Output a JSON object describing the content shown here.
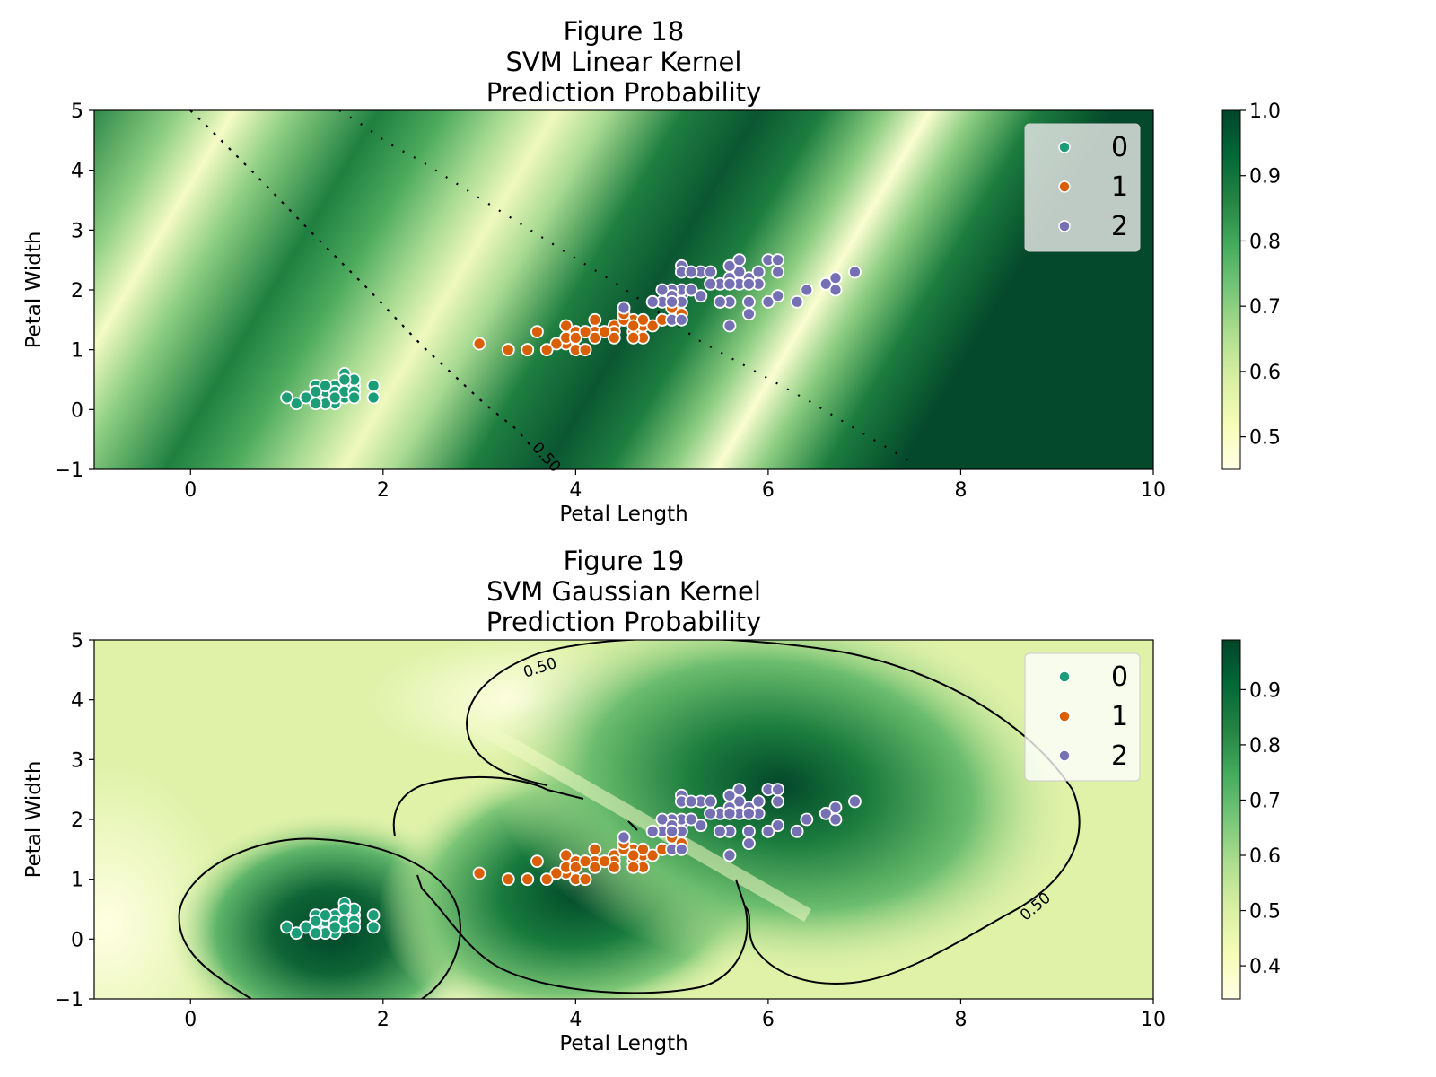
{
  "chart_data": [
    {
      "type": "scatter",
      "title": [
        "Figure 18",
        "SVM Linear Kernel",
        "Prediction Probability"
      ],
      "xlabel": "Petal Length",
      "ylabel": "Petal Width",
      "xlim": [
        -1,
        10
      ],
      "ylim": [
        -1,
        5
      ],
      "xticks": [
        "0",
        "2",
        "4",
        "6",
        "8",
        "10"
      ],
      "yticks": [
        "−1",
        "0",
        "1",
        "2",
        "3",
        "4",
        "5"
      ],
      "background": "heatmap",
      "colormap": "YlGn",
      "colorbar": {
        "range": [
          0.45,
          1.0
        ],
        "ticks": [
          "0.5",
          "0.6",
          "0.7",
          "0.8",
          "0.9",
          "1.0"
        ]
      },
      "contour_level_label": "0.50",
      "grid": false,
      "legend_position": "top-right",
      "legend_labels": [
        "0",
        "1",
        "2"
      ]
    },
    {
      "type": "scatter",
      "title": [
        "Figure 19",
        "SVM Gaussian Kernel",
        "Prediction Probability"
      ],
      "xlabel": "Petal Length",
      "ylabel": "Petal Width",
      "xlim": [
        -1,
        10
      ],
      "ylim": [
        -1,
        5
      ],
      "xticks": [
        "0",
        "2",
        "4",
        "6",
        "8",
        "10"
      ],
      "yticks": [
        "−1",
        "0",
        "1",
        "2",
        "3",
        "4",
        "5"
      ],
      "background": "heatmap",
      "colormap": "YlGn",
      "colorbar": {
        "range": [
          0.34,
          0.99
        ],
        "ticks": [
          "0.4",
          "0.5",
          "0.6",
          "0.7",
          "0.8",
          "0.9"
        ]
      },
      "contour_level_label": "0.50",
      "grid": false,
      "legend_position": "top-right",
      "legend_labels": [
        "0",
        "1",
        "2"
      ]
    }
  ],
  "series": [
    {
      "name": "0",
      "color": "#1b9e77",
      "points": [
        [
          1.4,
          0.2
        ],
        [
          1.3,
          0.2
        ],
        [
          1.5,
          0.2
        ],
        [
          1.7,
          0.4
        ],
        [
          1.4,
          0.3
        ],
        [
          1.5,
          0.1
        ],
        [
          1.6,
          0.2
        ],
        [
          1.1,
          0.1
        ],
        [
          1.2,
          0.2
        ],
        [
          1.3,
          0.4
        ],
        [
          1.0,
          0.2
        ],
        [
          1.7,
          0.5
        ],
        [
          1.9,
          0.2
        ],
        [
          1.6,
          0.4
        ],
        [
          1.5,
          0.4
        ],
        [
          1.4,
          0.1
        ],
        [
          1.6,
          0.6
        ],
        [
          1.9,
          0.4
        ],
        [
          1.3,
          0.3
        ],
        [
          1.5,
          0.3
        ],
        [
          1.6,
          0.3
        ],
        [
          1.7,
          0.3
        ],
        [
          1.4,
          0.4
        ],
        [
          1.2,
          0.2
        ],
        [
          1.5,
          0.2
        ],
        [
          1.6,
          0.5
        ],
        [
          1.7,
          0.2
        ],
        [
          1.3,
          0.1
        ]
      ]
    },
    {
      "name": "1",
      "color": "#d95f02",
      "points": [
        [
          4.7,
          1.4
        ],
        [
          4.5,
          1.5
        ],
        [
          4.9,
          1.5
        ],
        [
          4.0,
          1.3
        ],
        [
          4.6,
          1.5
        ],
        [
          3.3,
          1.0
        ],
        [
          4.6,
          1.3
        ],
        [
          3.9,
          1.4
        ],
        [
          3.5,
          1.0
        ],
        [
          4.2,
          1.5
        ],
        [
          4.0,
          1.0
        ],
        [
          4.7,
          1.4
        ],
        [
          3.6,
          1.3
        ],
        [
          4.4,
          1.4
        ],
        [
          4.5,
          1.5
        ],
        [
          4.1,
          1.0
        ],
        [
          4.5,
          1.5
        ],
        [
          3.9,
          1.1
        ],
        [
          4.8,
          1.8
        ],
        [
          4.0,
          1.3
        ],
        [
          4.9,
          1.5
        ],
        [
          4.7,
          1.2
        ],
        [
          4.3,
          1.3
        ],
        [
          4.4,
          1.4
        ],
        [
          4.8,
          1.4
        ],
        [
          5.0,
          1.7
        ],
        [
          4.5,
          1.5
        ],
        [
          3.5,
          1.0
        ],
        [
          3.8,
          1.1
        ],
        [
          3.7,
          1.0
        ],
        [
          3.9,
          1.2
        ],
        [
          5.1,
          1.6
        ],
        [
          4.5,
          1.6
        ],
        [
          4.7,
          1.5
        ],
        [
          4.4,
          1.3
        ],
        [
          4.1,
          1.3
        ],
        [
          4.0,
          1.3
        ],
        [
          4.4,
          1.2
        ],
        [
          4.6,
          1.4
        ],
        [
          4.0,
          1.2
        ],
        [
          3.3,
          1.0
        ],
        [
          4.2,
          1.3
        ],
        [
          4.2,
          1.2
        ],
        [
          4.3,
          1.3
        ],
        [
          3.0,
          1.1
        ],
        [
          4.1,
          1.3
        ],
        [
          4.5,
          1.7
        ],
        [
          4.6,
          1.2
        ],
        [
          4.9,
          1.5
        ],
        [
          5.0,
          1.5
        ]
      ]
    },
    {
      "name": "2",
      "color": "#7570b3",
      "points": [
        [
          6.0,
          2.5
        ],
        [
          5.1,
          1.9
        ],
        [
          5.9,
          2.1
        ],
        [
          5.6,
          1.8
        ],
        [
          5.8,
          2.2
        ],
        [
          6.6,
          2.1
        ],
        [
          4.5,
          1.7
        ],
        [
          6.3,
          1.8
        ],
        [
          5.8,
          1.8
        ],
        [
          6.1,
          2.5
        ],
        [
          5.1,
          2.0
        ],
        [
          5.3,
          1.9
        ],
        [
          5.5,
          2.1
        ],
        [
          5.0,
          2.0
        ],
        [
          5.1,
          2.4
        ],
        [
          5.3,
          2.3
        ],
        [
          5.5,
          1.8
        ],
        [
          6.7,
          2.2
        ],
        [
          6.9,
          2.3
        ],
        [
          5.0,
          1.5
        ],
        [
          5.7,
          2.3
        ],
        [
          4.9,
          2.0
        ],
        [
          6.7,
          2.0
        ],
        [
          4.9,
          1.8
        ],
        [
          5.7,
          2.1
        ],
        [
          6.0,
          1.8
        ],
        [
          4.8,
          1.8
        ],
        [
          5.8,
          2.1
        ],
        [
          6.1,
          1.9
        ],
        [
          6.4,
          2.0
        ],
        [
          5.6,
          2.2
        ],
        [
          5.1,
          1.5
        ],
        [
          5.6,
          1.4
        ],
        [
          6.1,
          2.3
        ],
        [
          5.6,
          2.4
        ],
        [
          5.5,
          1.8
        ],
        [
          4.8,
          1.8
        ],
        [
          5.4,
          2.1
        ],
        [
          5.6,
          2.4
        ],
        [
          5.1,
          2.3
        ],
        [
          5.9,
          2.3
        ],
        [
          5.7,
          2.5
        ],
        [
          5.2,
          2.3
        ],
        [
          5.0,
          1.9
        ],
        [
          5.2,
          2.0
        ],
        [
          5.4,
          2.3
        ],
        [
          5.1,
          1.8
        ],
        [
          5.8,
          1.6
        ],
        [
          5.9,
          2.3
        ],
        [
          5.6,
          2.1
        ],
        [
          5.0,
          1.8
        ],
        [
          5.2,
          2.0
        ]
      ]
    }
  ]
}
